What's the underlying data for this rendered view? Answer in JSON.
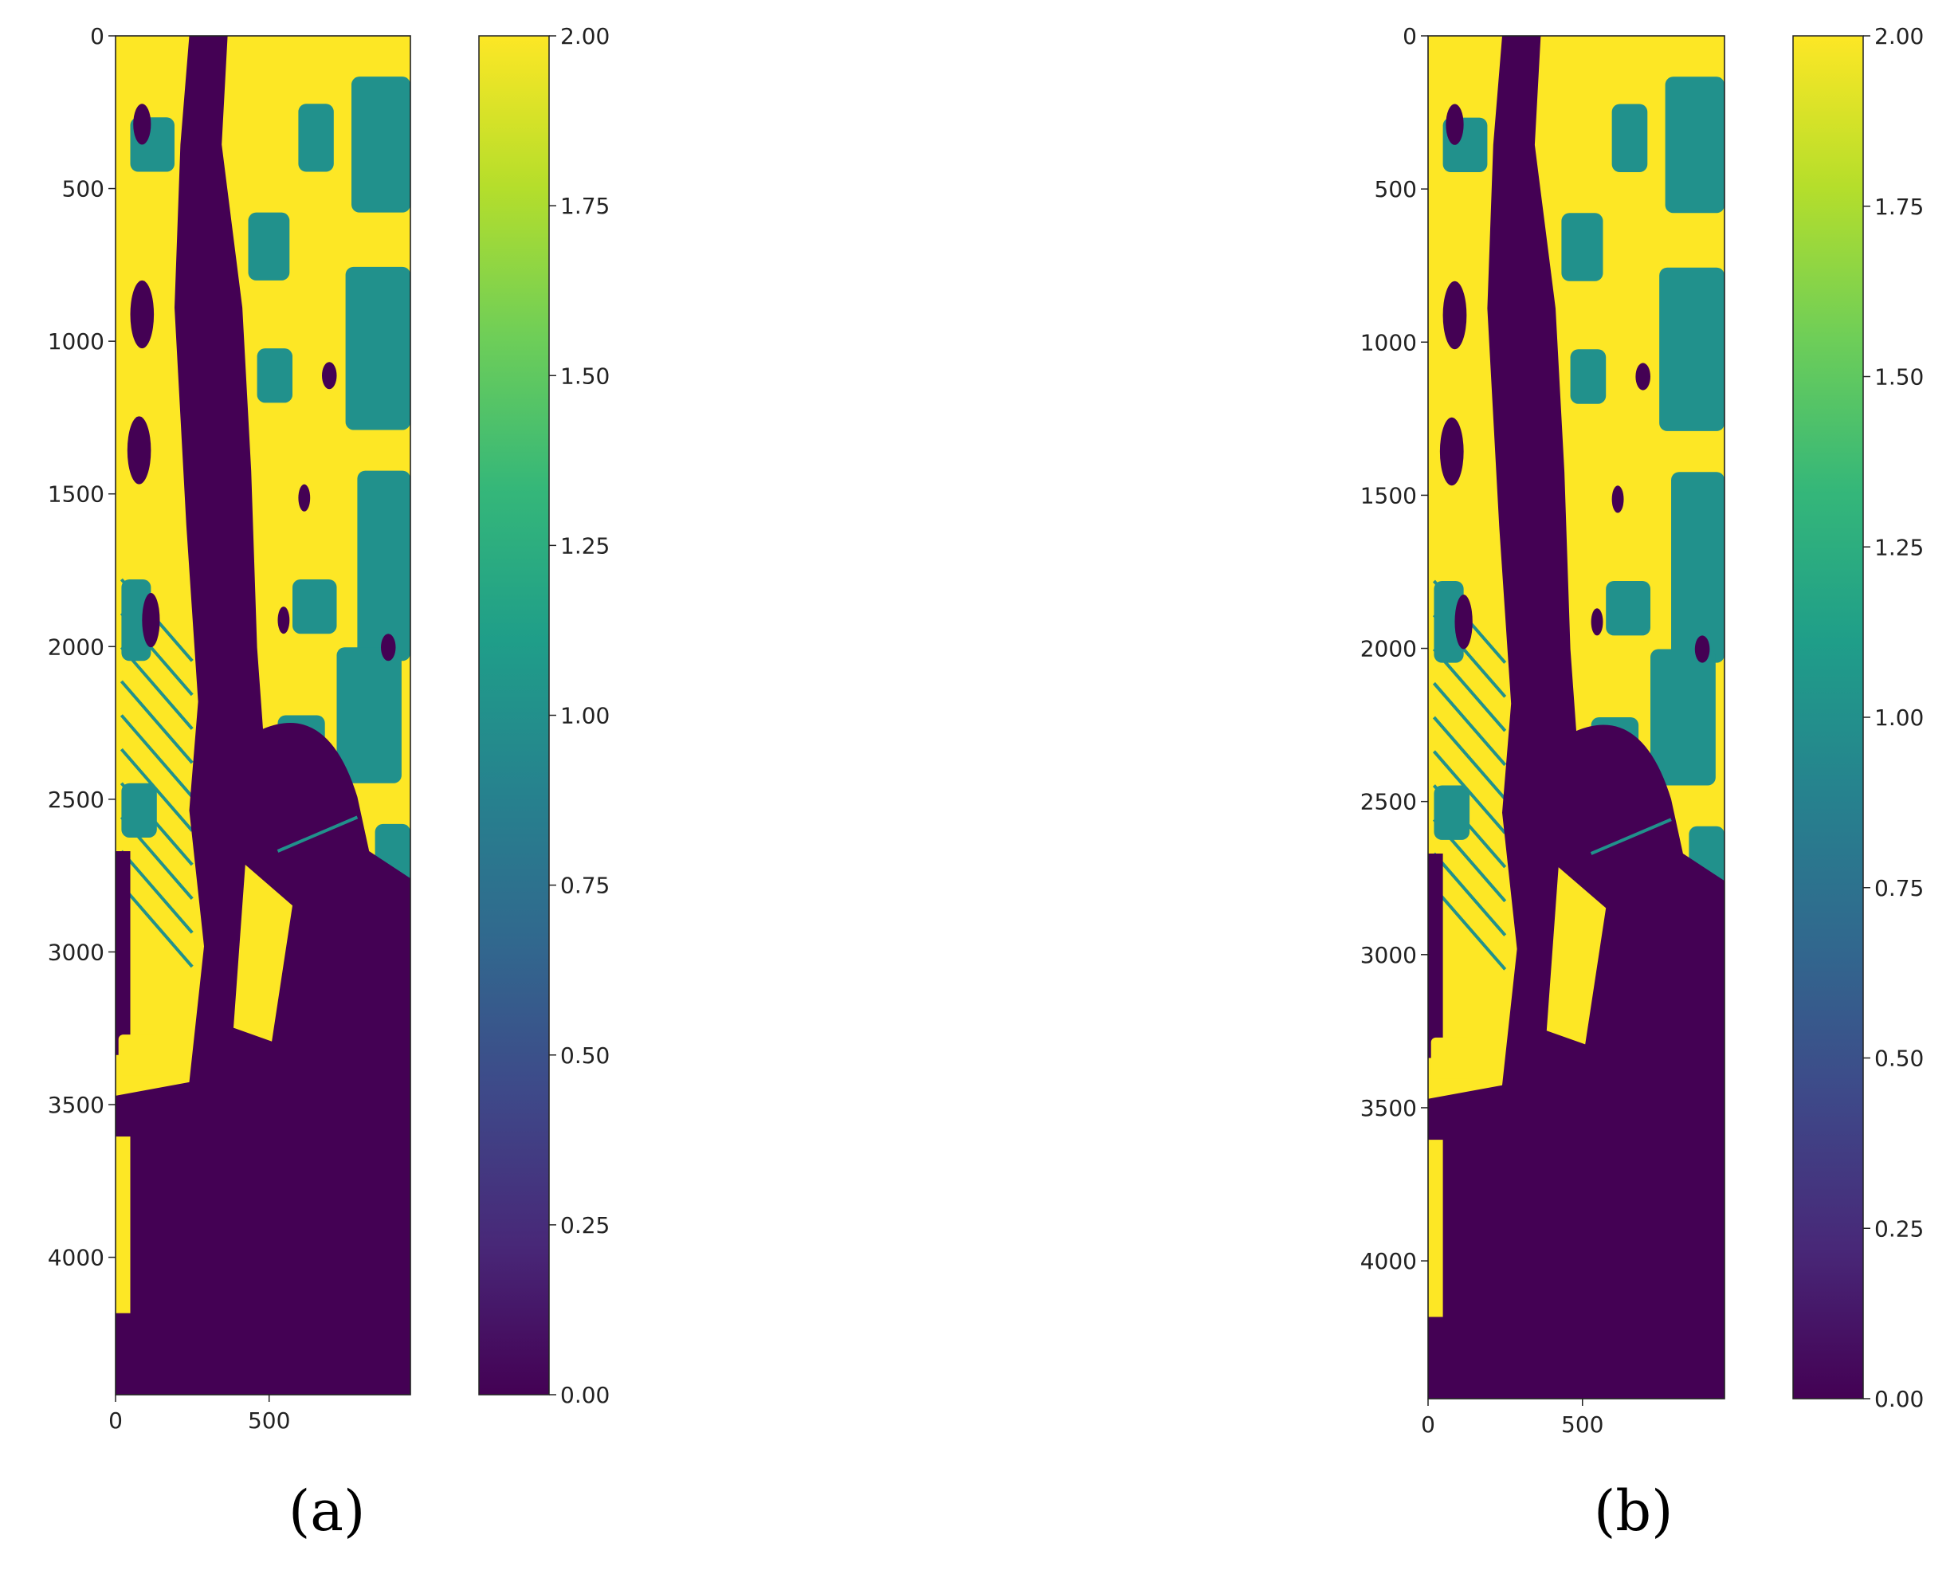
{
  "colors": {
    "viridis_low": "#440154",
    "viridis_mid": "#21918c",
    "viridis_high": "#fde725"
  },
  "panels": [
    {
      "caption": "(a)"
    },
    {
      "caption": "(b)"
    }
  ],
  "chart_data": [
    {
      "type": "heatmap",
      "title": "",
      "xlabel": "",
      "ylabel": "",
      "colormap": "viridis",
      "x_ticks": [
        0,
        500
      ],
      "y_ticks": [
        0,
        500,
        1000,
        1500,
        2000,
        2500,
        3000,
        3500,
        4000
      ],
      "xlim": [
        0,
        960
      ],
      "ylim": [
        4450,
        0
      ],
      "colorbar": {
        "range": [
          0.0,
          2.0
        ],
        "ticks": [
          "0.00",
          "0.25",
          "0.50",
          "0.75",
          "1.00",
          "1.25",
          "1.50",
          "1.75",
          "2.00"
        ]
      },
      "class_values": [
        0,
        1,
        2
      ],
      "grid": false
    },
    {
      "type": "heatmap",
      "title": "",
      "xlabel": "",
      "ylabel": "",
      "colormap": "viridis",
      "x_ticks": [
        0,
        500
      ],
      "y_ticks": [
        0,
        500,
        1000,
        1500,
        2000,
        2500,
        3000,
        3500,
        4000
      ],
      "xlim": [
        0,
        960
      ],
      "ylim": [
        4450,
        0
      ],
      "colorbar": {
        "range": [
          0.0,
          2.0
        ],
        "ticks": [
          "0.00",
          "0.25",
          "0.50",
          "0.75",
          "1.00",
          "1.25",
          "1.50",
          "1.75",
          "2.00"
        ]
      },
      "class_values": [
        0,
        1,
        2
      ],
      "grid": false
    }
  ]
}
